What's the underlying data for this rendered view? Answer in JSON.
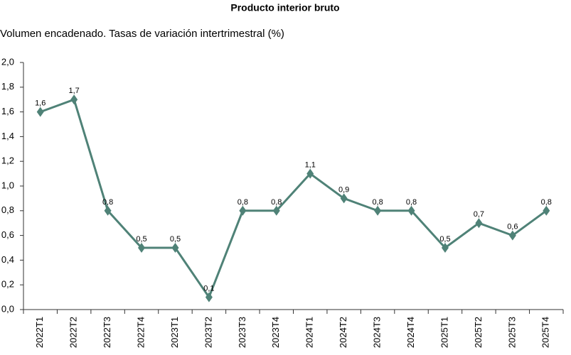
{
  "chart_data": {
    "type": "line",
    "title": "Producto interior bruto",
    "subtitle": "Volumen encadenado. Tasas de variación intertrimestral (%)",
    "categories": [
      "2022T1",
      "2022T2",
      "2022T3",
      "2022T4",
      "2023T1",
      "2023T2",
      "2023T3",
      "2023T4",
      "2024T1",
      "2024T2",
      "2024T3",
      "2024T4",
      "2025T1",
      "2025T2",
      "2025T3",
      "2025T4"
    ],
    "values": [
      1.6,
      1.7,
      0.8,
      0.5,
      0.5,
      0.1,
      0.8,
      0.8,
      1.1,
      0.9,
      0.8,
      0.8,
      0.5,
      0.7,
      0.6,
      0.8
    ],
    "value_labels": [
      "1,6",
      "1,7",
      "0,8",
      "0,5",
      "0,5",
      "0,1",
      "0,8",
      "0,8",
      "1,1",
      "0,9",
      "0,8",
      "0,8",
      "0,5",
      "0,7",
      "0,6",
      "0,8"
    ],
    "color": "#4f8277",
    "ylim": [
      0,
      2
    ],
    "yticks": [
      {
        "value": 0,
        "label": "0,0"
      },
      {
        "value": 0.2,
        "label": "0,2"
      },
      {
        "value": 0.4,
        "label": "0,4"
      },
      {
        "value": 0.6,
        "label": "0,6"
      },
      {
        "value": 0.8,
        "label": "0,8"
      },
      {
        "value": 1,
        "label": "1,0"
      },
      {
        "value": 1.2,
        "label": "1,2"
      },
      {
        "value": 1.4,
        "label": "1,4"
      },
      {
        "value": 1.6,
        "label": "1,6"
      },
      {
        "value": 1.8,
        "label": "1,8"
      },
      {
        "value": 2,
        "label": "2,0"
      }
    ],
    "grid": false
  }
}
